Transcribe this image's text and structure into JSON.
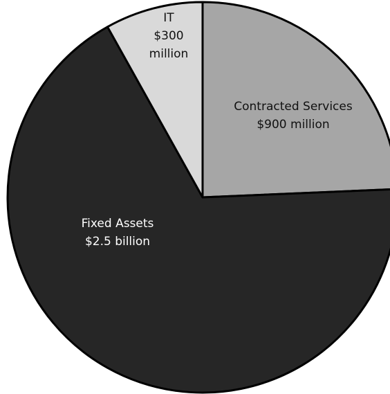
{
  "chart_data": {
    "type": "pie",
    "title": "",
    "start_angle_deg": 0,
    "direction": "clockwise",
    "slices": [
      {
        "category": "Contracted Services",
        "value_text": "$900 million",
        "value": 900,
        "unit": "million USD",
        "color": "#a6a6a6",
        "text_color": "#111111"
      },
      {
        "category": "Fixed Assets",
        "value_text": "$2.5 billion",
        "value": 2500,
        "unit": "million USD",
        "color": "#262626",
        "text_color": "#ffffff"
      },
      {
        "category": "IT",
        "value_text": "$300 million",
        "value": 300,
        "unit": "million USD",
        "color": "#d9d9d9",
        "text_color": "#111111"
      }
    ],
    "label_lines": [
      [
        "Contracted Services",
        "$900 million"
      ],
      [
        "Fixed Assets",
        "$2.5 billion"
      ],
      [
        "IT",
        "$300",
        "million"
      ]
    ],
    "legend": "none",
    "outline_color": "#000000"
  }
}
